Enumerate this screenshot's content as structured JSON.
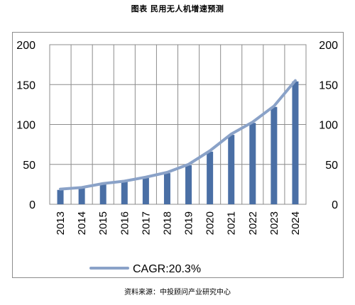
{
  "header": {
    "title": "图表  民用无人机增速预测"
  },
  "footer": {
    "source": "资料来源：中投顾问产业研究中心"
  },
  "colors": {
    "bar": "#4a6fa5",
    "line": "#8aa2c8",
    "grid": "#8c8c8c"
  },
  "chart_data": {
    "type": "bar",
    "categories": [
      "2013",
      "2014",
      "2015",
      "2016",
      "2017",
      "2018",
      "2019",
      "2020",
      "2021",
      "2022",
      "2023",
      "2024"
    ],
    "series": [
      {
        "values": [
          18,
          20,
          25,
          28,
          33,
          39,
          49,
          66,
          87,
          102,
          122,
          154
        ]
      },
      {
        "name": "CAGR:20.3%",
        "type": "line",
        "values": [
          19,
          21,
          26,
          29,
          34,
          40,
          50,
          67,
          88,
          103,
          123,
          155
        ]
      }
    ],
    "ylim": [
      0,
      200
    ],
    "yticks": [
      "0",
      "50",
      "100",
      "150",
      "200"
    ],
    "y2ticks": [
      "0",
      "50",
      "100",
      "150",
      "200"
    ],
    "xlabel": "",
    "ylabel": "",
    "grid": true,
    "legend": "bottom-left"
  }
}
